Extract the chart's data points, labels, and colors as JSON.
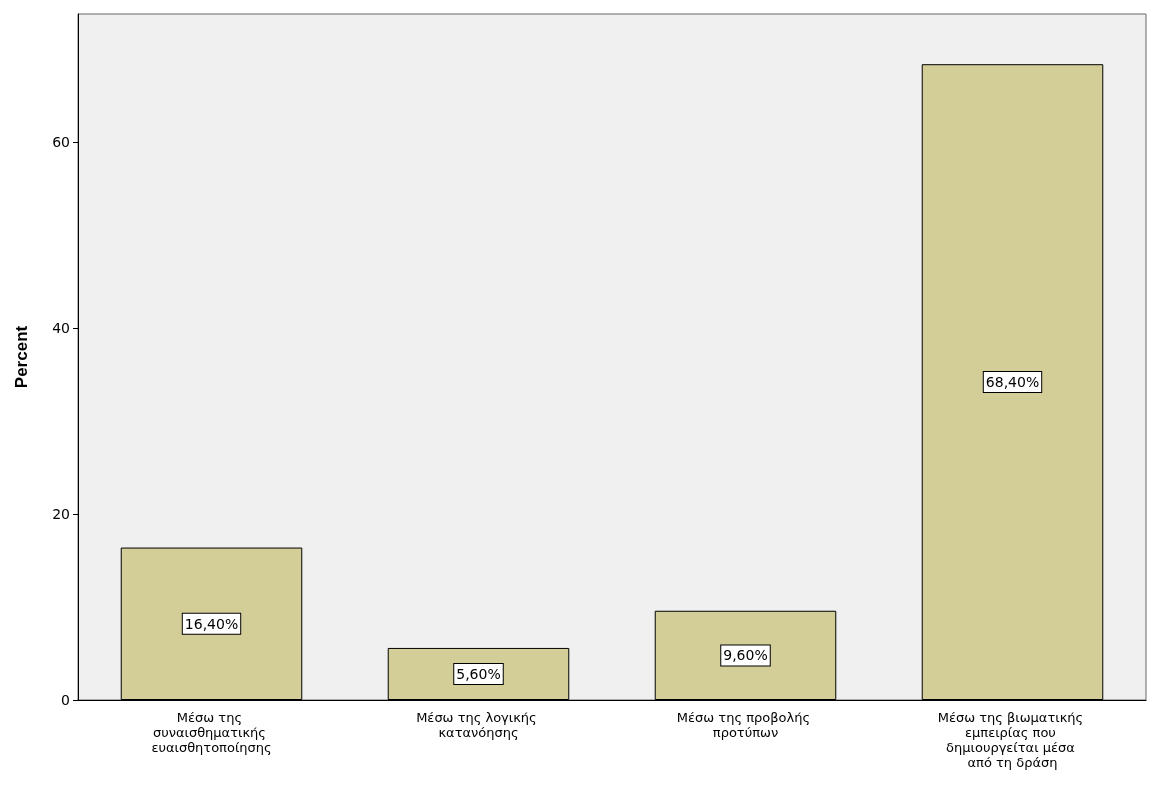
{
  "chart_data": {
    "type": "bar",
    "ylabel": "Percent",
    "categories": [
      "Μέσω της συναισθηματικής ευαισθητοποίησης",
      "Μέσω της λογικής κατανόησης",
      "Μέσω της προβολής προτύπων",
      "Μέσω της βιωματικής εμπειρίας που δημιουργείται μέσα από τη δράση"
    ],
    "values": [
      16.4,
      5.6,
      9.6,
      68.4
    ],
    "value_labels": [
      "16,40%",
      "5,60%",
      "9,60%",
      "68,40%"
    ],
    "color": "#d3ce98",
    "ylim": [
      0,
      73.8
    ],
    "yticks": [
      0,
      20,
      40,
      60
    ],
    "grid": false
  }
}
